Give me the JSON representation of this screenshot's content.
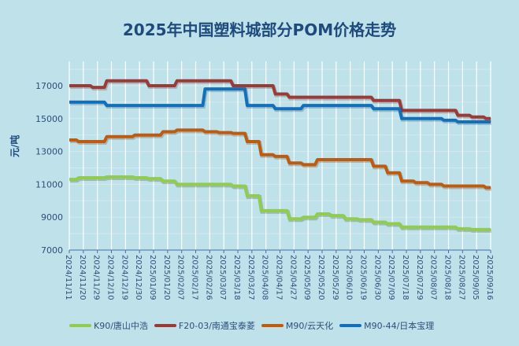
{
  "chart_data": {
    "type": "line",
    "title": "2025年中国塑料城部分POM价格走势",
    "ylabel": "元/吨",
    "xlabel": "",
    "ylim": [
      7000,
      18000
    ],
    "yticks": [
      7000,
      9000,
      11000,
      13000,
      15000,
      17000
    ],
    "grid": true,
    "legend_position": "bottom",
    "categories": [
      "2024/11/11",
      "2024/11/20",
      "2024/11/29",
      "2024/12/10",
      "2024/12/19",
      "2024/12/30",
      "2025/01/09",
      "2025/01/20",
      "2025/02/07",
      "2025/02/17",
      "2025/02/26",
      "2025/03/07",
      "2025/03/18",
      "2025/03/27",
      "2025/04/08",
      "2025/04/17",
      "2025/04/27",
      "2025/05/09",
      "2025/05/20",
      "2025/05/29",
      "2025/06/10",
      "2025/06/19",
      "2025/06/30",
      "2025/07/09",
      "2025/07/18",
      "2025/07/29",
      "2025/08/07",
      "2025/08/18",
      "2025/08/27",
      "2025/09/05",
      "2025/09/16"
    ],
    "series": [
      {
        "name": "K90/唐山中浩",
        "color": "#8fcd4b",
        "values": [
          11300,
          11400,
          11400,
          11450,
          11450,
          11400,
          11350,
          11200,
          11000,
          11000,
          11000,
          11000,
          10900,
          10300,
          9400,
          9400,
          8900,
          9000,
          9200,
          9100,
          8900,
          8850,
          8700,
          8600,
          8400,
          8400,
          8400,
          8400,
          8300,
          8250,
          8250
        ]
      },
      {
        "name": "F20-03/南通宝泰菱",
        "color": "#9e3a36",
        "values": [
          17000,
          17000,
          16900,
          17300,
          17300,
          17300,
          17000,
          17000,
          17300,
          17300,
          17300,
          17300,
          17000,
          17000,
          17000,
          16500,
          16300,
          16300,
          16300,
          16300,
          16300,
          16300,
          16100,
          16100,
          15500,
          15500,
          15500,
          15500,
          15200,
          15100,
          15000
        ]
      },
      {
        "name": "M90/云天化",
        "color": "#c05a0d",
        "values": [
          13700,
          13600,
          13600,
          13900,
          13900,
          14000,
          14000,
          14200,
          14300,
          14300,
          14200,
          14150,
          14100,
          13600,
          12800,
          12700,
          12300,
          12200,
          12500,
          12500,
          12500,
          12500,
          12100,
          11700,
          11200,
          11100,
          11000,
          10900,
          10900,
          10900,
          10800
        ]
      },
      {
        "name": "M90-44/日本宝理",
        "color": "#1170bd",
        "values": [
          16000,
          16000,
          16000,
          15800,
          15800,
          15800,
          15800,
          15800,
          15800,
          15800,
          16800,
          16800,
          16800,
          15800,
          15800,
          15600,
          15600,
          15800,
          15800,
          15800,
          15800,
          15800,
          15600,
          15600,
          15000,
          15000,
          15000,
          14900,
          14800,
          14800,
          14800
        ]
      }
    ]
  }
}
